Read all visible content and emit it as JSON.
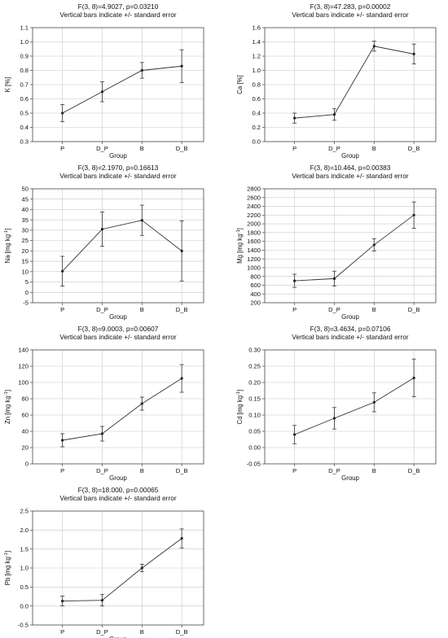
{
  "chart_data": [
    {
      "type": "line",
      "title_line1": "F(3, 8)=4.9027, p=0.03210",
      "title_line2": "Vertical bars indicate +/- standard error",
      "xlabel": "Group",
      "ylabel": "K [%]",
      "ylabel_sup": "",
      "ylabel_tail": "",
      "categories": [
        "P",
        "D_P",
        "B",
        "D_B"
      ],
      "values": [
        0.5,
        0.65,
        0.8,
        0.83
      ],
      "errors": [
        0.06,
        0.07,
        0.055,
        0.115
      ],
      "ylim": [
        0.3,
        1.1
      ],
      "yticks": [
        "0.3",
        "0.4",
        "0.5",
        "0.6",
        "0.7",
        "0.8",
        "0.9",
        "1.0",
        "1.1"
      ],
      "grid": true
    },
    {
      "type": "line",
      "title_line1": "F(3, 8)=47.283, p=0.00002",
      "title_line2": "Vertical bars indicate +/- standard error",
      "xlabel": "Group",
      "ylabel": "Ca [%]",
      "ylabel_sup": "",
      "ylabel_tail": "",
      "categories": [
        "P",
        "D_P",
        "B",
        "D_B"
      ],
      "values": [
        0.33,
        0.38,
        1.34,
        1.23
      ],
      "errors": [
        0.07,
        0.08,
        0.07,
        0.14
      ],
      "ylim": [
        0.0,
        1.6
      ],
      "yticks": [
        "0.0",
        "0.2",
        "0.4",
        "0.6",
        "0.8",
        "1.0",
        "1.2",
        "1.4",
        "1.6"
      ],
      "grid": true
    },
    {
      "type": "line",
      "title_line1": "F(3, 8)=2.1970, p=0.16613",
      "title_line2": "Vertical bars indicate +/- standard error",
      "xlabel": "Group",
      "ylabel": "Na [mg kg",
      "ylabel_sup": "-1",
      "ylabel_tail": "]",
      "categories": [
        "P",
        "D_P",
        "B",
        "D_B"
      ],
      "values": [
        10.2,
        30.5,
        34.8,
        20.0
      ],
      "errors": [
        7.2,
        8.3,
        7.3,
        14.5
      ],
      "ylim": [
        -5,
        50
      ],
      "yticks": [
        "-5",
        "0",
        "5",
        "10",
        "15",
        "20",
        "25",
        "30",
        "35",
        "40",
        "45",
        "50"
      ],
      "grid": true
    },
    {
      "type": "line",
      "title_line1": "F(3, 8)=10.464, p=0.00383",
      "title_line2": "Vertical bars indicate +/- standard error",
      "xlabel": "Group",
      "ylabel": "Mg [mg kg",
      "ylabel_sup": "-1",
      "ylabel_tail": "]",
      "categories": [
        "P",
        "D_P",
        "B",
        "D_B"
      ],
      "values": [
        700,
        750,
        1520,
        2200
      ],
      "errors": [
        150,
        170,
        140,
        300
      ],
      "ylim": [
        200,
        2800
      ],
      "yticks": [
        "200",
        "400",
        "600",
        "800",
        "1000",
        "1200",
        "1400",
        "1600",
        "1800",
        "2000",
        "2200",
        "2400",
        "2600",
        "2800"
      ],
      "grid": true
    },
    {
      "type": "line",
      "title_line1": "F(3, 8)=9.0003, p=0.00607",
      "title_line2": "Vertical bars indicate +/- standard error",
      "xlabel": "Group",
      "ylabel": "Zn [mg kg",
      "ylabel_sup": "-1",
      "ylabel_tail": "]",
      "categories": [
        "P",
        "D_P",
        "B",
        "D_B"
      ],
      "values": [
        29,
        37,
        74,
        105
      ],
      "errors": [
        8,
        9,
        8,
        17
      ],
      "ylim": [
        0,
        140
      ],
      "yticks": [
        "0",
        "20",
        "40",
        "60",
        "80",
        "100",
        "120",
        "140"
      ],
      "grid": true
    },
    {
      "type": "line",
      "title_line1": "F(3, 8)=3.4634, p=0.07106",
      "title_line2": "Vertical bars indicate +/- standard error",
      "xlabel": "Group",
      "ylabel": "Cd [mg kg",
      "ylabel_sup": "-1",
      "ylabel_tail": "]",
      "categories": [
        "P",
        "D_P",
        "B",
        "D_B"
      ],
      "values": [
        0.04,
        0.09,
        0.139,
        0.214
      ],
      "errors": [
        0.028,
        0.033,
        0.029,
        0.058
      ],
      "ylim": [
        -0.05,
        0.3
      ],
      "yticks": [
        "-0.05",
        "0.00",
        "0.05",
        "0.10",
        "0.15",
        "0.20",
        "0.25",
        "0.30"
      ],
      "grid": true
    },
    {
      "type": "line",
      "title_line1": "F(3, 8)=18.000, p=0.00065",
      "title_line2": "Vertical bars indicate +/- standard error",
      "xlabel": "Group",
      "ylabel": "Pb [mg kg",
      "ylabel_sup": "-1",
      "ylabel_tail": "]",
      "categories": [
        "P",
        "D_P",
        "B",
        "D_B"
      ],
      "values": [
        0.13,
        0.15,
        1.0,
        1.78
      ],
      "errors": [
        0.13,
        0.15,
        0.1,
        0.25
      ],
      "ylim": [
        -0.5,
        2.5
      ],
      "yticks": [
        "-0.5",
        "0.0",
        "0.5",
        "1.0",
        "1.5",
        "2.0",
        "2.5"
      ],
      "grid": true
    }
  ]
}
